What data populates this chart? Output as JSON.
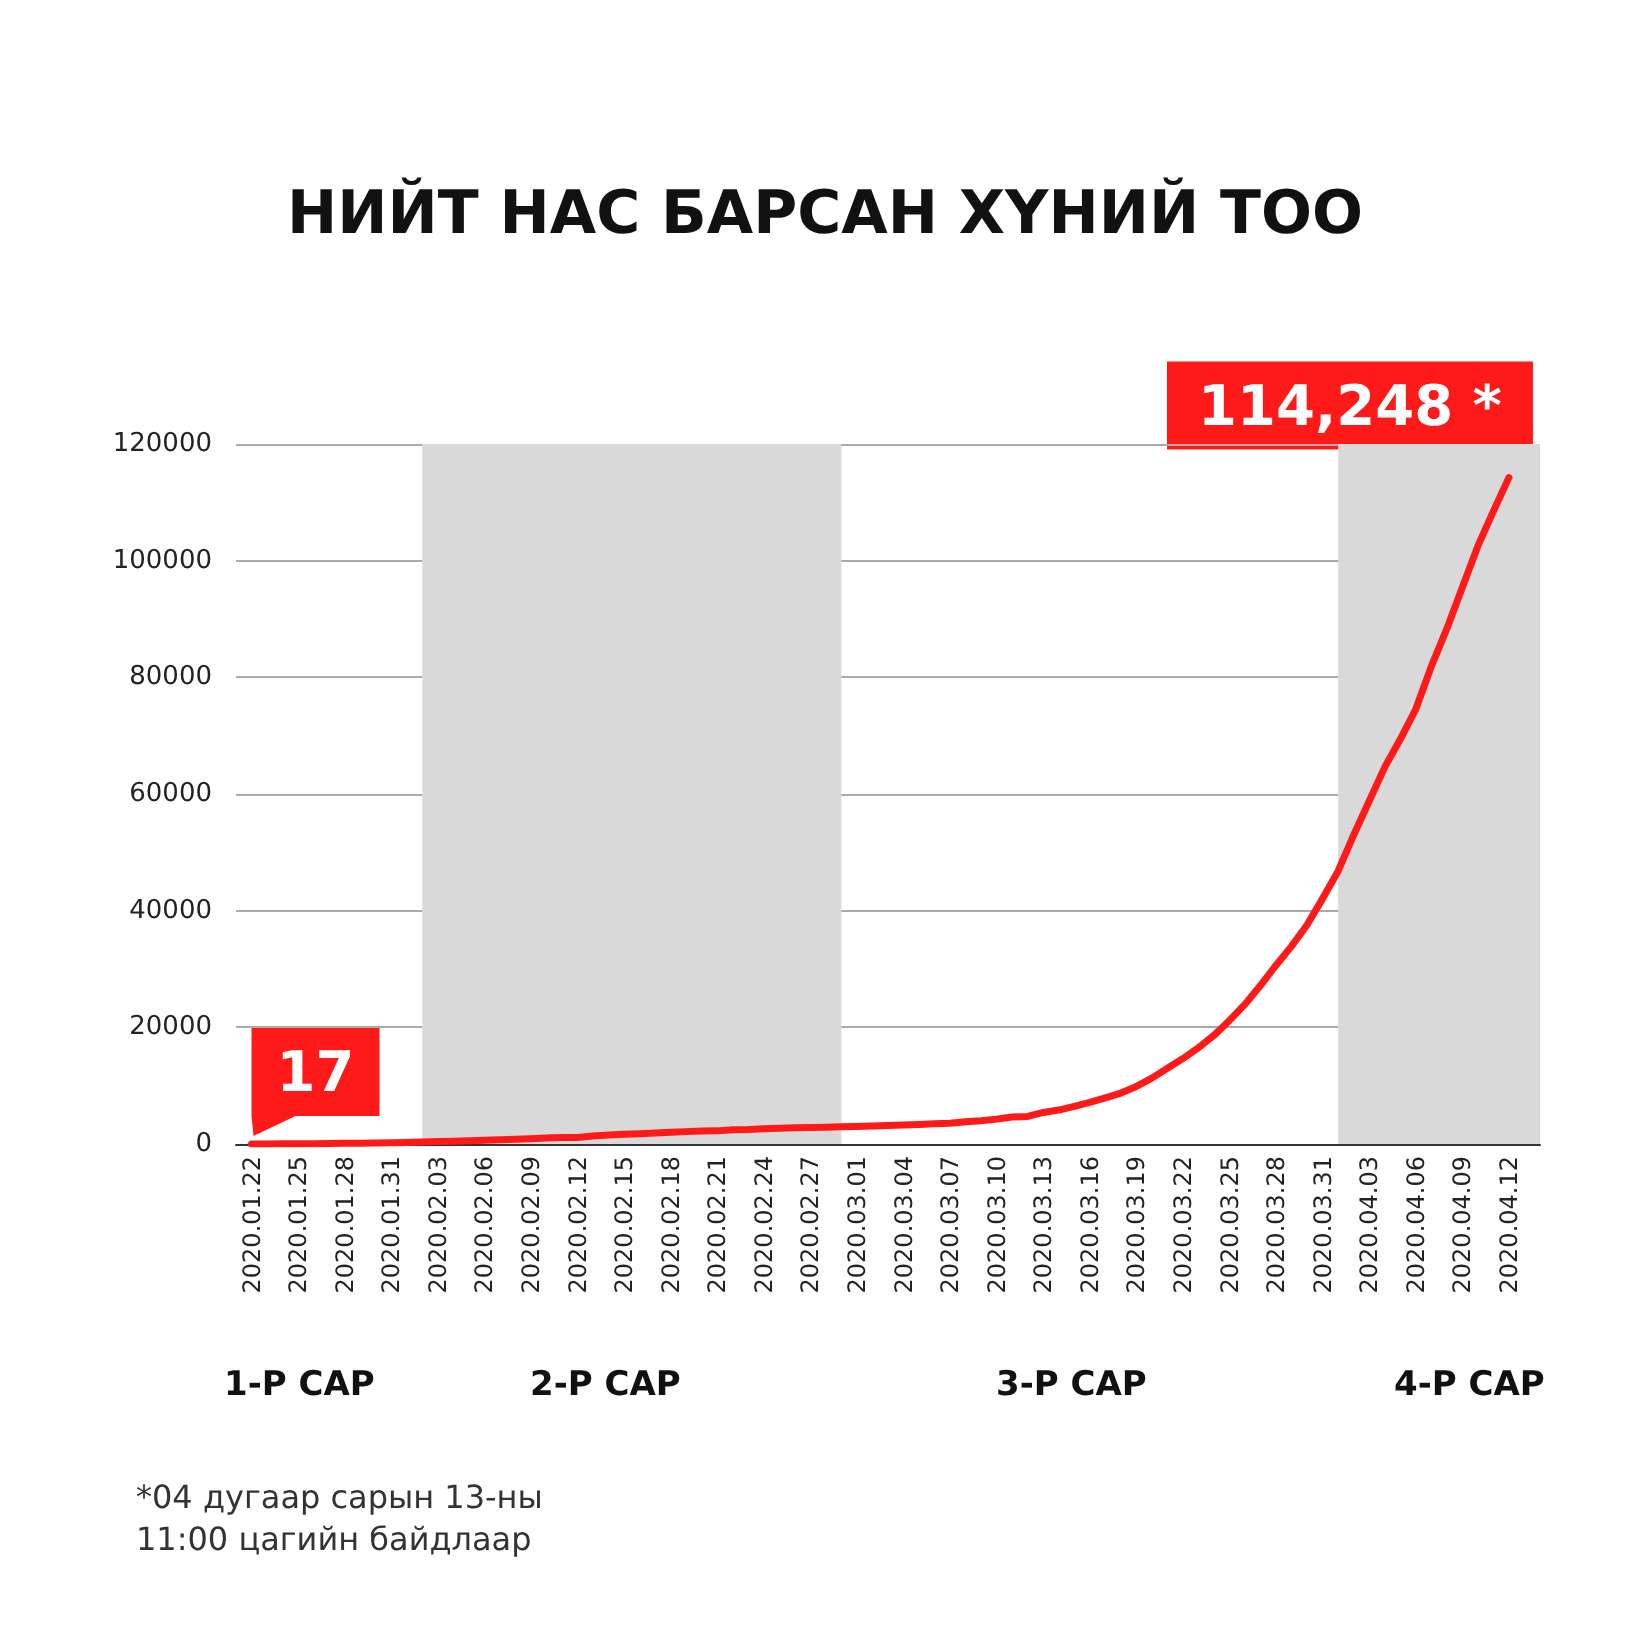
{
  "chart_data": {
    "type": "line",
    "title": "НИЙТ НАС БАРСАН ХҮНИЙ ТОО",
    "x": [
      "2020-01-22",
      "2020-01-23",
      "2020-01-24",
      "2020-01-25",
      "2020-01-26",
      "2020-01-27",
      "2020-01-28",
      "2020-01-29",
      "2020-01-30",
      "2020-01-31",
      "2020-02-01",
      "2020-02-02",
      "2020-02-03",
      "2020-02-04",
      "2020-02-05",
      "2020-02-06",
      "2020-02-07",
      "2020-02-08",
      "2020-02-09",
      "2020-02-10",
      "2020-02-11",
      "2020-02-12",
      "2020-02-13",
      "2020-02-14",
      "2020-02-15",
      "2020-02-16",
      "2020-02-17",
      "2020-02-18",
      "2020-02-19",
      "2020-02-20",
      "2020-02-21",
      "2020-02-22",
      "2020-02-23",
      "2020-02-24",
      "2020-02-25",
      "2020-02-26",
      "2020-02-27",
      "2020-02-28",
      "2020-02-29",
      "2020-03-01",
      "2020-03-02",
      "2020-03-03",
      "2020-03-04",
      "2020-03-05",
      "2020-03-06",
      "2020-03-07",
      "2020-03-08",
      "2020-03-09",
      "2020-03-10",
      "2020-03-11",
      "2020-03-12",
      "2020-03-13",
      "2020-03-14",
      "2020-03-15",
      "2020-03-16",
      "2020-03-17",
      "2020-03-18",
      "2020-03-19",
      "2020-03-20",
      "2020-03-21",
      "2020-03-22",
      "2020-03-23",
      "2020-03-24",
      "2020-03-25",
      "2020-03-26",
      "2020-03-27",
      "2020-03-28",
      "2020-03-29",
      "2020-03-30",
      "2020-03-31",
      "2020-04-01",
      "2020-04-02",
      "2020-04-03",
      "2020-04-04",
      "2020-04-05",
      "2020-04-06",
      "2020-04-07",
      "2020-04-08",
      "2020-04-09",
      "2020-04-10",
      "2020-04-11",
      "2020-04-12"
    ],
    "series": [
      {
        "color": "#ff1a1a",
        "values": [
          17,
          18,
          26,
          42,
          56,
          82,
          131,
          133,
          171,
          213,
          259,
          362,
          426,
          492,
          564,
          634,
          719,
          806,
          906,
          1013,
          1113,
          1118,
          1371,
          1523,
          1666,
          1770,
          1868,
          2007,
          2122,
          2247,
          2251,
          2458,
          2469,
          2629,
          2708,
          2770,
          2814,
          2872,
          2941,
          2996,
          3085,
          3160,
          3254,
          3348,
          3460,
          3558,
          3802,
          3988,
          4262,
          4615,
          4720,
          5404,
          5819,
          6440,
          7126,
          7905,
          8733,
          9867,
          11299,
          12973,
          14651,
          16505,
          18625,
          21181,
          23970,
          27198,
          30652,
          33925,
          37582,
          42107,
          46809,
          52983,
          58787,
          64606,
          69374,
          74565,
          81865,
          88338,
          95455,
          102525,
          108503,
          114248
        ]
      }
    ],
    "xlim": [
      "2020-01-21",
      "2020-04-14"
    ],
    "xticks": [
      {
        "value": "2020-01-22",
        "label": "2020.01.22"
      },
      {
        "value": "2020-01-25",
        "label": "2020.01.25"
      },
      {
        "value": "2020-01-28",
        "label": "2020.01.28"
      },
      {
        "value": "2020-01-31",
        "label": "2020.01.31"
      },
      {
        "value": "2020-02-03",
        "label": "2020.02.03"
      },
      {
        "value": "2020-02-06",
        "label": "2020.02.06"
      },
      {
        "value": "2020-02-09",
        "label": "2020.02.09"
      },
      {
        "value": "2020-02-12",
        "label": "2020.02.12"
      },
      {
        "value": "2020-02-15",
        "label": "2020.02.15"
      },
      {
        "value": "2020-02-18",
        "label": "2020.02.18"
      },
      {
        "value": "2020-02-21",
        "label": "2020.02.21"
      },
      {
        "value": "2020-02-24",
        "label": "2020.02.24"
      },
      {
        "value": "2020-02-27",
        "label": "2020.02.27"
      },
      {
        "value": "2020-03-01",
        "label": "2020.03.01"
      },
      {
        "value": "2020-03-04",
        "label": "2020.03.04"
      },
      {
        "value": "2020-03-07",
        "label": "2020.03.07"
      },
      {
        "value": "2020-03-10",
        "label": "2020.03.10"
      },
      {
        "value": "2020-03-13",
        "label": "2020.03.13"
      },
      {
        "value": "2020-03-16",
        "label": "2020.03.16"
      },
      {
        "value": "2020-03-19",
        "label": "2020.03.19"
      },
      {
        "value": "2020-03-22",
        "label": "2020.03.22"
      },
      {
        "value": "2020-03-25",
        "label": "2020.03.25"
      },
      {
        "value": "2020-03-28",
        "label": "2020.03.28"
      },
      {
        "value": "2020-03-31",
        "label": "2020.03.31"
      },
      {
        "value": "2020-04-03",
        "label": "2020.04.03"
      },
      {
        "value": "2020-04-06",
        "label": "2020.04.06"
      },
      {
        "value": "2020-04-09",
        "label": "2020.04.09"
      },
      {
        "value": "2020-04-12",
        "label": "2020.04.12"
      }
    ],
    "ylim": [
      0,
      120000
    ],
    "yticks": [
      0,
      20000,
      40000,
      60000,
      80000,
      100000,
      120000
    ],
    "grid": "y",
    "marker": "none",
    "line_style": "solid",
    "bands": [
      {
        "axis": "x",
        "from": "2020-02-02",
        "to": "2020-02-29",
        "color": "#d9d9d9"
      },
      {
        "axis": "x",
        "from": "2020-04-01",
        "to": "2020-04-14",
        "color": "#d9d9d9"
      }
    ],
    "annotations": [
      {
        "text": "17",
        "x": "2020-01-22",
        "y": 17
      },
      {
        "text": "114,248 *",
        "x": "2020-04-12",
        "y": 114248
      },
      "1-Р САР",
      "2-Р САР",
      "3-Р САР",
      "4-Р САР",
      "*04 дугаар сарын 13-ны\n11:00 цагийн байдлаар"
    ]
  }
}
